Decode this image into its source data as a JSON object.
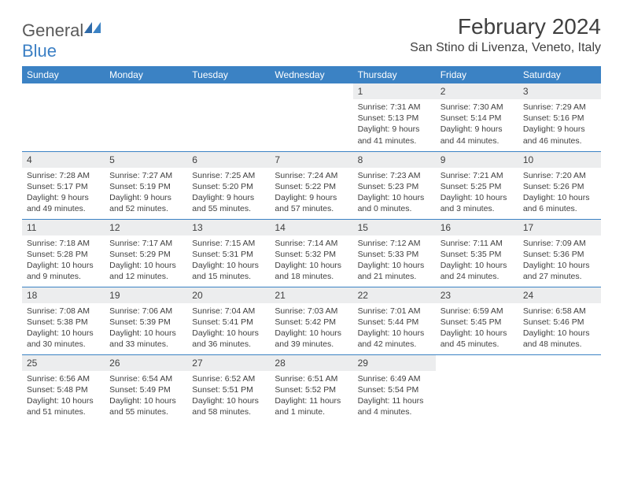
{
  "branding": {
    "logo_part1": "General",
    "logo_part2": "Blue",
    "logo_text_color": "#5a5a5a",
    "logo_accent_color": "#3b7fc4"
  },
  "header": {
    "month_title": "February 2024",
    "location": "San Stino di Livenza, Veneto, Italy"
  },
  "colors": {
    "header_bg": "#3b82c4",
    "header_text": "#ffffff",
    "daynum_bg": "#ecedee",
    "text": "#404040",
    "row_border": "#3b82c4",
    "page_bg": "#ffffff"
  },
  "calendar": {
    "day_headers": [
      "Sunday",
      "Monday",
      "Tuesday",
      "Wednesday",
      "Thursday",
      "Friday",
      "Saturday"
    ],
    "weeks": [
      [
        null,
        null,
        null,
        null,
        {
          "n": "1",
          "sunrise": "Sunrise: 7:31 AM",
          "sunset": "Sunset: 5:13 PM",
          "daylight": "Daylight: 9 hours and 41 minutes."
        },
        {
          "n": "2",
          "sunrise": "Sunrise: 7:30 AM",
          "sunset": "Sunset: 5:14 PM",
          "daylight": "Daylight: 9 hours and 44 minutes."
        },
        {
          "n": "3",
          "sunrise": "Sunrise: 7:29 AM",
          "sunset": "Sunset: 5:16 PM",
          "daylight": "Daylight: 9 hours and 46 minutes."
        }
      ],
      [
        {
          "n": "4",
          "sunrise": "Sunrise: 7:28 AM",
          "sunset": "Sunset: 5:17 PM",
          "daylight": "Daylight: 9 hours and 49 minutes."
        },
        {
          "n": "5",
          "sunrise": "Sunrise: 7:27 AM",
          "sunset": "Sunset: 5:19 PM",
          "daylight": "Daylight: 9 hours and 52 minutes."
        },
        {
          "n": "6",
          "sunrise": "Sunrise: 7:25 AM",
          "sunset": "Sunset: 5:20 PM",
          "daylight": "Daylight: 9 hours and 55 minutes."
        },
        {
          "n": "7",
          "sunrise": "Sunrise: 7:24 AM",
          "sunset": "Sunset: 5:22 PM",
          "daylight": "Daylight: 9 hours and 57 minutes."
        },
        {
          "n": "8",
          "sunrise": "Sunrise: 7:23 AM",
          "sunset": "Sunset: 5:23 PM",
          "daylight": "Daylight: 10 hours and 0 minutes."
        },
        {
          "n": "9",
          "sunrise": "Sunrise: 7:21 AM",
          "sunset": "Sunset: 5:25 PM",
          "daylight": "Daylight: 10 hours and 3 minutes."
        },
        {
          "n": "10",
          "sunrise": "Sunrise: 7:20 AM",
          "sunset": "Sunset: 5:26 PM",
          "daylight": "Daylight: 10 hours and 6 minutes."
        }
      ],
      [
        {
          "n": "11",
          "sunrise": "Sunrise: 7:18 AM",
          "sunset": "Sunset: 5:28 PM",
          "daylight": "Daylight: 10 hours and 9 minutes."
        },
        {
          "n": "12",
          "sunrise": "Sunrise: 7:17 AM",
          "sunset": "Sunset: 5:29 PM",
          "daylight": "Daylight: 10 hours and 12 minutes."
        },
        {
          "n": "13",
          "sunrise": "Sunrise: 7:15 AM",
          "sunset": "Sunset: 5:31 PM",
          "daylight": "Daylight: 10 hours and 15 minutes."
        },
        {
          "n": "14",
          "sunrise": "Sunrise: 7:14 AM",
          "sunset": "Sunset: 5:32 PM",
          "daylight": "Daylight: 10 hours and 18 minutes."
        },
        {
          "n": "15",
          "sunrise": "Sunrise: 7:12 AM",
          "sunset": "Sunset: 5:33 PM",
          "daylight": "Daylight: 10 hours and 21 minutes."
        },
        {
          "n": "16",
          "sunrise": "Sunrise: 7:11 AM",
          "sunset": "Sunset: 5:35 PM",
          "daylight": "Daylight: 10 hours and 24 minutes."
        },
        {
          "n": "17",
          "sunrise": "Sunrise: 7:09 AM",
          "sunset": "Sunset: 5:36 PM",
          "daylight": "Daylight: 10 hours and 27 minutes."
        }
      ],
      [
        {
          "n": "18",
          "sunrise": "Sunrise: 7:08 AM",
          "sunset": "Sunset: 5:38 PM",
          "daylight": "Daylight: 10 hours and 30 minutes."
        },
        {
          "n": "19",
          "sunrise": "Sunrise: 7:06 AM",
          "sunset": "Sunset: 5:39 PM",
          "daylight": "Daylight: 10 hours and 33 minutes."
        },
        {
          "n": "20",
          "sunrise": "Sunrise: 7:04 AM",
          "sunset": "Sunset: 5:41 PM",
          "daylight": "Daylight: 10 hours and 36 minutes."
        },
        {
          "n": "21",
          "sunrise": "Sunrise: 7:03 AM",
          "sunset": "Sunset: 5:42 PM",
          "daylight": "Daylight: 10 hours and 39 minutes."
        },
        {
          "n": "22",
          "sunrise": "Sunrise: 7:01 AM",
          "sunset": "Sunset: 5:44 PM",
          "daylight": "Daylight: 10 hours and 42 minutes."
        },
        {
          "n": "23",
          "sunrise": "Sunrise: 6:59 AM",
          "sunset": "Sunset: 5:45 PM",
          "daylight": "Daylight: 10 hours and 45 minutes."
        },
        {
          "n": "24",
          "sunrise": "Sunrise: 6:58 AM",
          "sunset": "Sunset: 5:46 PM",
          "daylight": "Daylight: 10 hours and 48 minutes."
        }
      ],
      [
        {
          "n": "25",
          "sunrise": "Sunrise: 6:56 AM",
          "sunset": "Sunset: 5:48 PM",
          "daylight": "Daylight: 10 hours and 51 minutes."
        },
        {
          "n": "26",
          "sunrise": "Sunrise: 6:54 AM",
          "sunset": "Sunset: 5:49 PM",
          "daylight": "Daylight: 10 hours and 55 minutes."
        },
        {
          "n": "27",
          "sunrise": "Sunrise: 6:52 AM",
          "sunset": "Sunset: 5:51 PM",
          "daylight": "Daylight: 10 hours and 58 minutes."
        },
        {
          "n": "28",
          "sunrise": "Sunrise: 6:51 AM",
          "sunset": "Sunset: 5:52 PM",
          "daylight": "Daylight: 11 hours and 1 minute."
        },
        {
          "n": "29",
          "sunrise": "Sunrise: 6:49 AM",
          "sunset": "Sunset: 5:54 PM",
          "daylight": "Daylight: 11 hours and 4 minutes."
        },
        null,
        null
      ]
    ]
  }
}
